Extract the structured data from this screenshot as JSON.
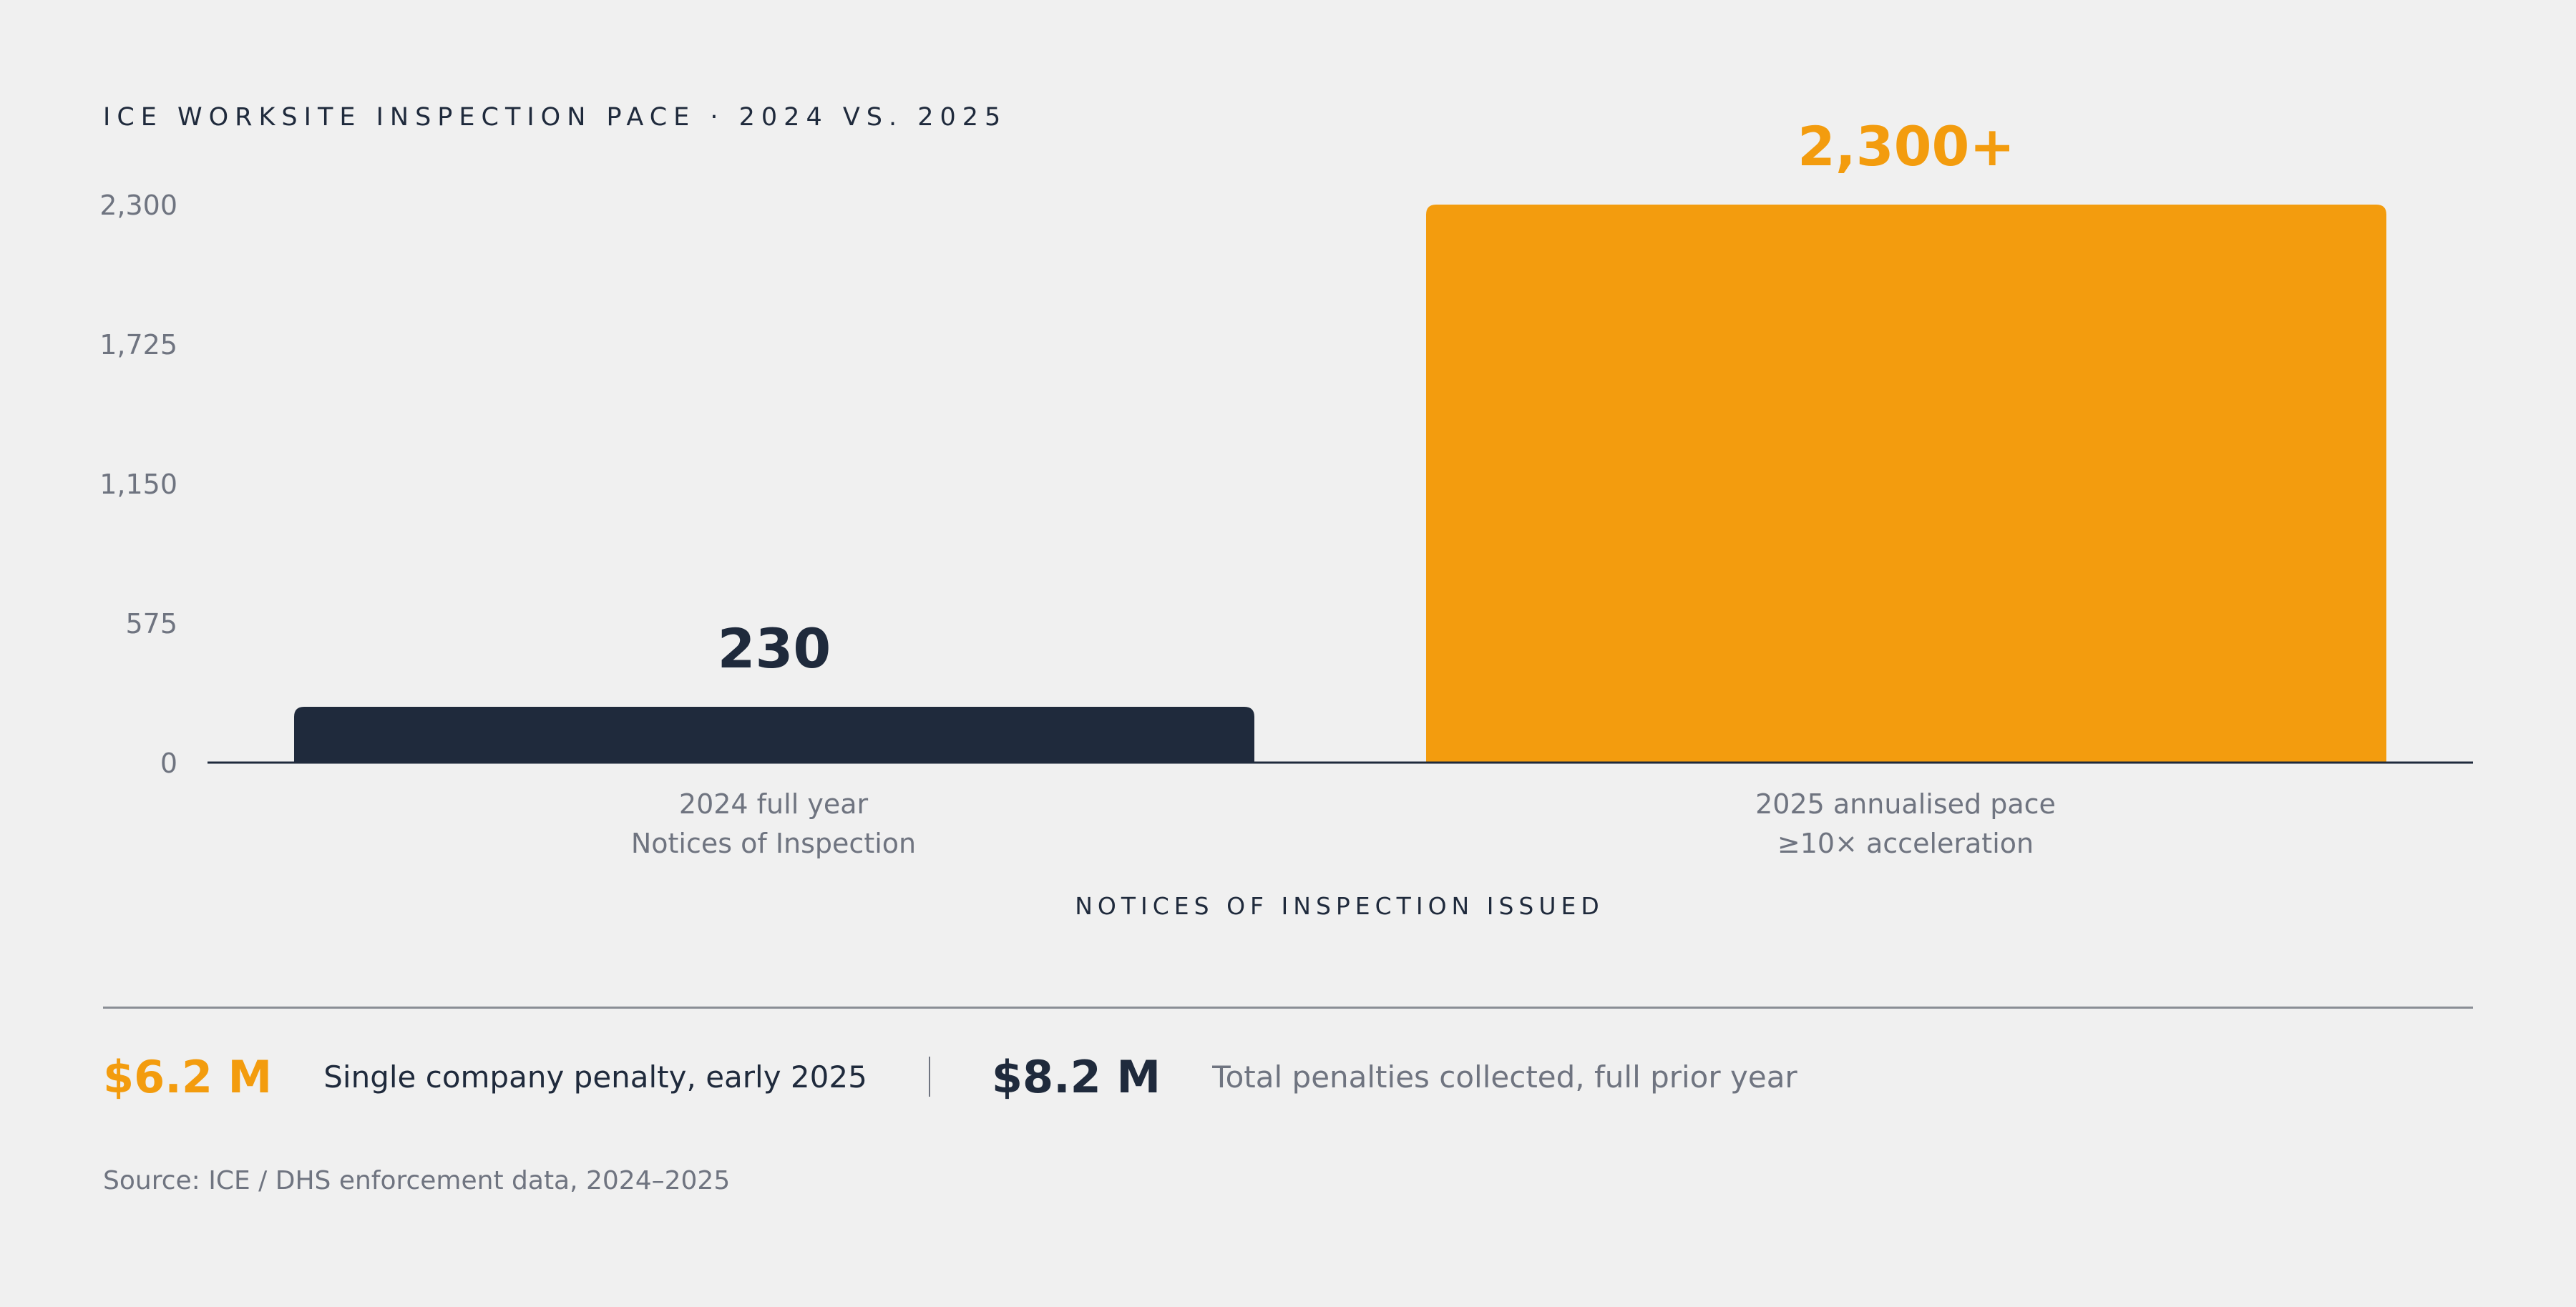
{
  "chart_data": {
    "type": "bar",
    "title": "ICE WORKSITE INSPECTION PACE · 2024 VS. 2025",
    "xlabel": "NOTICES OF INSPECTION ISSUED",
    "ylabel": "",
    "ylim": [
      0,
      2300
    ],
    "yticks": [
      "0",
      "575",
      "1,150",
      "1,725",
      "2,300"
    ],
    "ytick_values": [
      0,
      575,
      1150,
      1725,
      2300
    ],
    "grid": false,
    "categories": [
      [
        "2024 full year",
        "Notices of Inspection"
      ],
      [
        "2025 annualised pace",
        "≥10× acceleration"
      ]
    ],
    "values": [
      230,
      2300
    ],
    "data_labels": [
      "230",
      "2,300+"
    ],
    "colors": [
      "#1f2a3c",
      "#f39c0e"
    ],
    "axis_color": "#1f2a3c",
    "tick_label_color": "#6f7480"
  },
  "stats": [
    {
      "value": "$6.2 M",
      "label": "Single company penalty, early 2025"
    },
    {
      "value": "$8.2 M",
      "label": "Total penalties collected, full prior year"
    }
  ],
  "source": "Source: ICE / DHS enforcement data, 2024–2025"
}
